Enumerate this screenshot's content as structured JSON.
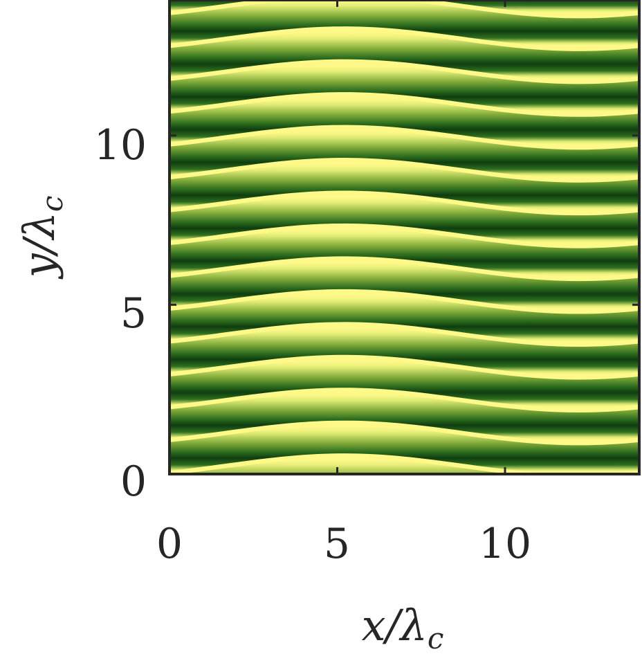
{
  "chart_data": {
    "type": "heatmap",
    "title": "",
    "xlabel": "x/λ",
    "xlabel_sub": "c",
    "ylabel": "y/λ",
    "ylabel_sub": "c",
    "xlim": [
      0,
      14
    ],
    "ylim": [
      0,
      14
    ],
    "xticks": [
      0,
      5,
      10
    ],
    "yticks": [
      0,
      5,
      10
    ],
    "xtick_labels": [
      "0",
      "5",
      "10"
    ],
    "ytick_labels": [
      "0",
      "5",
      "10"
    ],
    "pattern": {
      "stripe_count": 14,
      "stripe_spacing": 0.97,
      "first_dark_band_y": 0.73,
      "undulation_amplitude": 0.3,
      "undulation_period": 14,
      "undulation_center_x": 5.2
    },
    "colormap": [
      "#0f3d0f",
      "#2f6f1f",
      "#7da838",
      "#d9e870",
      "#fff98a"
    ],
    "grid": false,
    "colorbar": false
  }
}
